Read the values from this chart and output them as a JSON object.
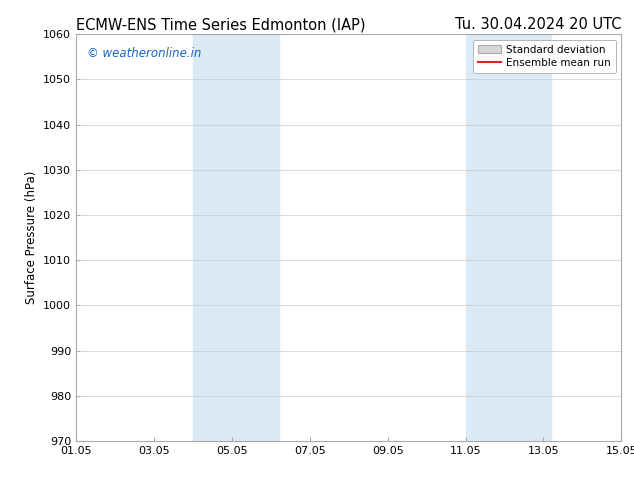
{
  "title_left": "ECMW-ENS Time Series Edmonton (IAP)",
  "title_right": "Tu. 30.04.2024 20 UTC",
  "ylabel": "Surface Pressure (hPa)",
  "ylim": [
    970,
    1060
  ],
  "yticks": [
    970,
    980,
    990,
    1000,
    1010,
    1020,
    1030,
    1040,
    1050,
    1060
  ],
  "xtick_labels": [
    "01.05",
    "03.05",
    "05.05",
    "07.05",
    "09.05",
    "11.05",
    "13.05",
    "15.05"
  ],
  "xtick_positions": [
    0,
    2,
    4,
    6,
    8,
    10,
    12,
    14
  ],
  "xlim": [
    0,
    14
  ],
  "shaded_regions": [
    {
      "x_start": 3.0,
      "x_end": 5.2,
      "color": "#daeaf7"
    },
    {
      "x_start": 10.0,
      "x_end": 12.2,
      "color": "#daeaf7"
    }
  ],
  "watermark_text": "© weatheronline.in",
  "watermark_color": "#1565C0",
  "legend_std_label": "Standard deviation",
  "legend_mean_label": "Ensemble mean run",
  "legend_std_facecolor": "#d8d8d8",
  "legend_std_edgecolor": "#aaaaaa",
  "legend_mean_color": "#dd2222",
  "bg_color": "#ffffff",
  "grid_color": "#cccccc",
  "title_fontsize": 10.5,
  "axis_label_fontsize": 8.5,
  "tick_fontsize": 8,
  "watermark_fontsize": 8.5
}
